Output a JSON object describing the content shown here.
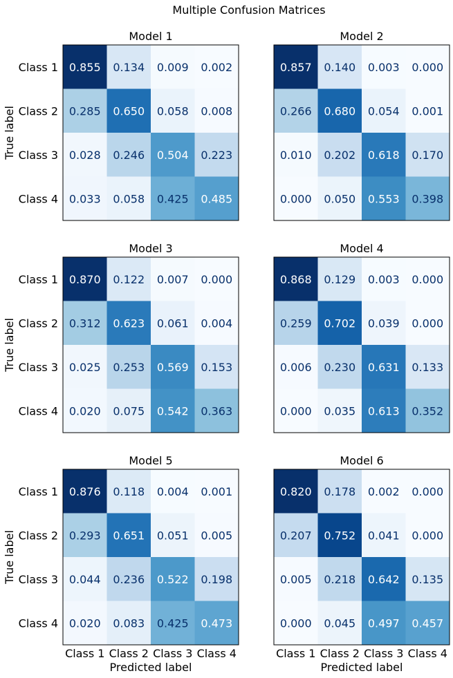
{
  "figure": {
    "title": "Multiple Confusion Matrices"
  },
  "chart_data": [
    {
      "type": "heatmap",
      "title": "Model 1",
      "xlabel": "",
      "ylabel": "True label",
      "x_categories": [
        "Class 1",
        "Class 2",
        "Class 3",
        "Class 4"
      ],
      "y_categories": [
        "Class 1",
        "Class 2",
        "Class 3",
        "Class 4"
      ],
      "values": [
        [
          0.855,
          0.134,
          0.009,
          0.002
        ],
        [
          0.285,
          0.65,
          0.058,
          0.008
        ],
        [
          0.028,
          0.246,
          0.504,
          0.223
        ],
        [
          0.033,
          0.058,
          0.425,
          0.485
        ]
      ],
      "colormap": "Blues",
      "show_x_ticklabels": false,
      "show_y_ticklabels": true
    },
    {
      "type": "heatmap",
      "title": "Model 2",
      "xlabel": "",
      "ylabel": "",
      "x_categories": [
        "Class 1",
        "Class 2",
        "Class 3",
        "Class 4"
      ],
      "y_categories": [
        "Class 1",
        "Class 2",
        "Class 3",
        "Class 4"
      ],
      "values": [
        [
          0.857,
          0.14,
          0.003,
          0.0
        ],
        [
          0.266,
          0.68,
          0.054,
          0.001
        ],
        [
          0.01,
          0.202,
          0.618,
          0.17
        ],
        [
          0.0,
          0.05,
          0.553,
          0.398
        ]
      ],
      "colormap": "Blues",
      "show_x_ticklabels": false,
      "show_y_ticklabels": false
    },
    {
      "type": "heatmap",
      "title": "Model 3",
      "xlabel": "",
      "ylabel": "True label",
      "x_categories": [
        "Class 1",
        "Class 2",
        "Class 3",
        "Class 4"
      ],
      "y_categories": [
        "Class 1",
        "Class 2",
        "Class 3",
        "Class 4"
      ],
      "values": [
        [
          0.87,
          0.122,
          0.007,
          0.0
        ],
        [
          0.312,
          0.623,
          0.061,
          0.004
        ],
        [
          0.025,
          0.253,
          0.569,
          0.153
        ],
        [
          0.02,
          0.075,
          0.542,
          0.363
        ]
      ],
      "colormap": "Blues",
      "show_x_ticklabels": false,
      "show_y_ticklabels": true
    },
    {
      "type": "heatmap",
      "title": "Model 4",
      "xlabel": "",
      "ylabel": "",
      "x_categories": [
        "Class 1",
        "Class 2",
        "Class 3",
        "Class 4"
      ],
      "y_categories": [
        "Class 1",
        "Class 2",
        "Class 3",
        "Class 4"
      ],
      "values": [
        [
          0.868,
          0.129,
          0.003,
          0.0
        ],
        [
          0.259,
          0.702,
          0.039,
          0.0
        ],
        [
          0.006,
          0.23,
          0.631,
          0.133
        ],
        [
          0.0,
          0.035,
          0.613,
          0.352
        ]
      ],
      "colormap": "Blues",
      "show_x_ticklabels": false,
      "show_y_ticklabels": false
    },
    {
      "type": "heatmap",
      "title": "Model 5",
      "xlabel": "Predicted label",
      "ylabel": "True label",
      "x_categories": [
        "Class 1",
        "Class 2",
        "Class 3",
        "Class 4"
      ],
      "y_categories": [
        "Class 1",
        "Class 2",
        "Class 3",
        "Class 4"
      ],
      "values": [
        [
          0.876,
          0.118,
          0.004,
          0.001
        ],
        [
          0.293,
          0.651,
          0.051,
          0.005
        ],
        [
          0.044,
          0.236,
          0.522,
          0.198
        ],
        [
          0.02,
          0.083,
          0.425,
          0.473
        ]
      ],
      "colormap": "Blues",
      "show_x_ticklabels": true,
      "show_y_ticklabels": true
    },
    {
      "type": "heatmap",
      "title": "Model 6",
      "xlabel": "Predicted label",
      "ylabel": "",
      "x_categories": [
        "Class 1",
        "Class 2",
        "Class 3",
        "Class 4"
      ],
      "y_categories": [
        "Class 1",
        "Class 2",
        "Class 3",
        "Class 4"
      ],
      "values": [
        [
          0.82,
          0.178,
          0.002,
          0.0
        ],
        [
          0.207,
          0.752,
          0.041,
          0.0
        ],
        [
          0.005,
          0.218,
          0.642,
          0.135
        ],
        [
          0.0,
          0.045,
          0.497,
          0.457
        ]
      ],
      "colormap": "Blues",
      "show_x_ticklabels": true,
      "show_y_ticklabels": false
    }
  ]
}
